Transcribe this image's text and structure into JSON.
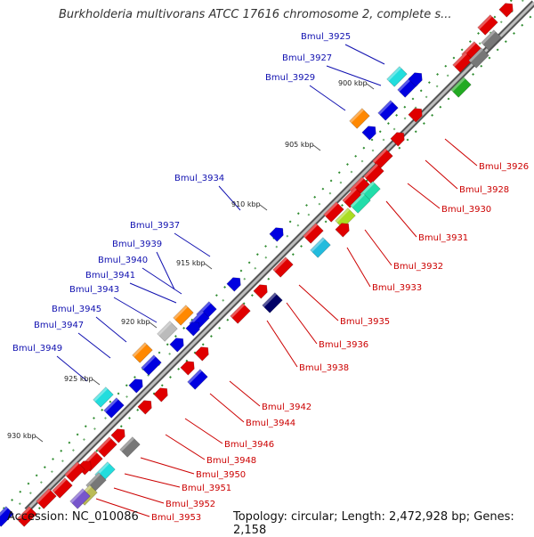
{
  "title": "Burkholderia multivorans ATCC 17616 chromosome 2, complete s...",
  "footer": {
    "accession": "Accession: NC_010086",
    "topology": "Topology: circular; Length: 2,472,928 bp; Genes: 2,158"
  },
  "colors": {
    "label_left": "#1010b0",
    "label_right": "#cc0000",
    "backbone": "#8c8c8c",
    "tick": "#2e8b2e"
  },
  "ticks": [
    "900 kbp",
    "905 kbp",
    "910 kbp",
    "915 kbp",
    "920 kbp",
    "925 kbp",
    "930 kbp"
  ],
  "labels_left": [
    "Bmul_3925",
    "Bmul_3927",
    "Bmul_3929",
    "Bmul_3934",
    "Bmul_3937",
    "Bmul_3939",
    "Bmul_3940",
    "Bmul_3941",
    "Bmul_3943",
    "Bmul_3945",
    "Bmul_3947",
    "Bmul_3949"
  ],
  "labels_right": [
    "Bmul_3926",
    "Bmul_3928",
    "Bmul_3930",
    "Bmul_3931",
    "Bmul_3932",
    "Bmul_3933",
    "Bmul_3935",
    "Bmul_3936",
    "Bmul_3938",
    "Bmul_3942",
    "Bmul_3944",
    "Bmul_3946",
    "Bmul_3948",
    "Bmul_3950",
    "Bmul_3951",
    "Bmul_3952",
    "Bmul_3953"
  ]
}
